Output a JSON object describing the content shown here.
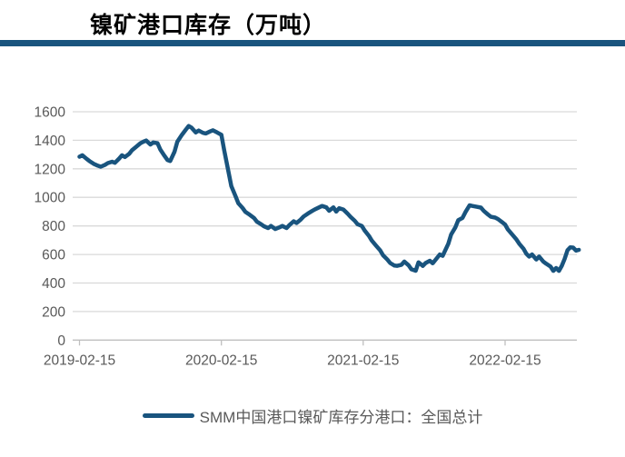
{
  "header": {
    "title": "镍矿港口库存（万吨）"
  },
  "legend": {
    "label": "SMM中国港口镍矿库存分港口：全国总计"
  },
  "colors": {
    "line": "#19547E",
    "divider": "#19547E",
    "grid": "#D9D9D9",
    "axis": "#BFBFBF",
    "tick_label": "#595959",
    "title": "#000000",
    "background": "#FFFFFF"
  },
  "chart_data": {
    "type": "line",
    "title": "镍矿港口库存（万吨）",
    "xlabel": "",
    "ylabel": "",
    "grid": "horizontal",
    "legend_position": "bottom",
    "ylim": [
      0,
      1600
    ],
    "yticks": [
      0,
      200,
      400,
      600,
      800,
      1000,
      1200,
      1400,
      1600
    ],
    "xlim": [
      2019.072,
      2022.626
    ],
    "xticks": [
      {
        "t": 2019.12,
        "label": "2019-02-15"
      },
      {
        "t": 2020.12,
        "label": "2020-02-15"
      },
      {
        "t": 2021.12,
        "label": "2021-02-15"
      },
      {
        "t": 2022.12,
        "label": "2022-02-15"
      }
    ],
    "series": [
      {
        "name": "SMM中国港口镍矿库存分港口：全国总计",
        "x": [
          2019.12,
          2019.14,
          2019.17,
          2019.19,
          2019.22,
          2019.25,
          2019.27,
          2019.3,
          2019.32,
          2019.35,
          2019.37,
          2019.4,
          2019.42,
          2019.44,
          2019.47,
          2019.49,
          2019.52,
          2019.55,
          2019.57,
          2019.59,
          2019.62,
          2019.64,
          2019.67,
          2019.69,
          2019.72,
          2019.74,
          2019.76,
          2019.79,
          2019.81,
          2019.84,
          2019.87,
          2019.89,
          2019.91,
          2019.94,
          2019.96,
          2019.99,
          2020.01,
          2020.04,
          2020.06,
          2020.09,
          2020.12,
          2020.14,
          2020.17,
          2020.19,
          2020.22,
          2020.24,
          2020.27,
          2020.29,
          2020.32,
          2020.35,
          2020.37,
          2020.4,
          2020.42,
          2020.45,
          2020.47,
          2020.5,
          2020.53,
          2020.55,
          2020.58,
          2020.6,
          2020.63,
          2020.65,
          2020.68,
          2020.7,
          2020.73,
          2020.76,
          2020.78,
          2020.81,
          2020.83,
          2020.86,
          2020.88,
          2020.91,
          2020.93,
          2020.95,
          2020.98,
          2021.01,
          2021.03,
          2021.06,
          2021.08,
          2021.11,
          2021.13,
          2021.16,
          2021.18,
          2021.21,
          2021.24,
          2021.26,
          2021.29,
          2021.31,
          2021.34,
          2021.36,
          2021.39,
          2021.41,
          2021.44,
          2021.46,
          2021.49,
          2021.51,
          2021.54,
          2021.56,
          2021.59,
          2021.61,
          2021.64,
          2021.66,
          2021.68,
          2021.72,
          2021.74,
          2021.77,
          2021.79,
          2021.82,
          2021.84,
          2021.87,
          2021.89,
          2021.92,
          2021.95,
          2021.97,
          2022.0,
          2022.02,
          2022.05,
          2022.07,
          2022.1,
          2022.12,
          2022.14,
          2022.17,
          2022.2,
          2022.22,
          2022.25,
          2022.27,
          2022.29,
          2022.31,
          2022.34,
          2022.36,
          2022.39,
          2022.41,
          2022.44,
          2022.46,
          2022.48,
          2022.5,
          2022.52,
          2022.54,
          2022.56,
          2022.58,
          2022.6,
          2022.62,
          2022.64
        ],
        "values": [
          1285,
          1295,
          1270,
          1255,
          1235,
          1222,
          1215,
          1228,
          1240,
          1250,
          1242,
          1272,
          1295,
          1283,
          1305,
          1330,
          1355,
          1380,
          1390,
          1398,
          1370,
          1385,
          1380,
          1335,
          1290,
          1262,
          1255,
          1320,
          1390,
          1435,
          1475,
          1500,
          1488,
          1455,
          1468,
          1452,
          1448,
          1462,
          1470,
          1455,
          1438,
          1330,
          1180,
          1080,
          1008,
          958,
          925,
          898,
          878,
          856,
          830,
          812,
          798,
          785,
          800,
          778,
          790,
          800,
          785,
          806,
          832,
          820,
          845,
          866,
          886,
          905,
          916,
          930,
          940,
          930,
          906,
          930,
          900,
          924,
          915,
          886,
          864,
          836,
          812,
          800,
          768,
          730,
          698,
          662,
          628,
          594,
          564,
          540,
          522,
          520,
          528,
          550,
          524,
          496,
          486,
          545,
          520,
          540,
          556,
          538,
          575,
          600,
          590,
          675,
          740,
          790,
          840,
          856,
          896,
          944,
          940,
          934,
          928,
          905,
          880,
          864,
          858,
          848,
          825,
          810,
          775,
          740,
          705,
          675,
          640,
          605,
          585,
          600,
          565,
          585,
          550,
          535,
          515,
          485,
          505,
          485,
          520,
          570,
          630,
          650,
          648,
          627,
          632
        ]
      }
    ]
  }
}
